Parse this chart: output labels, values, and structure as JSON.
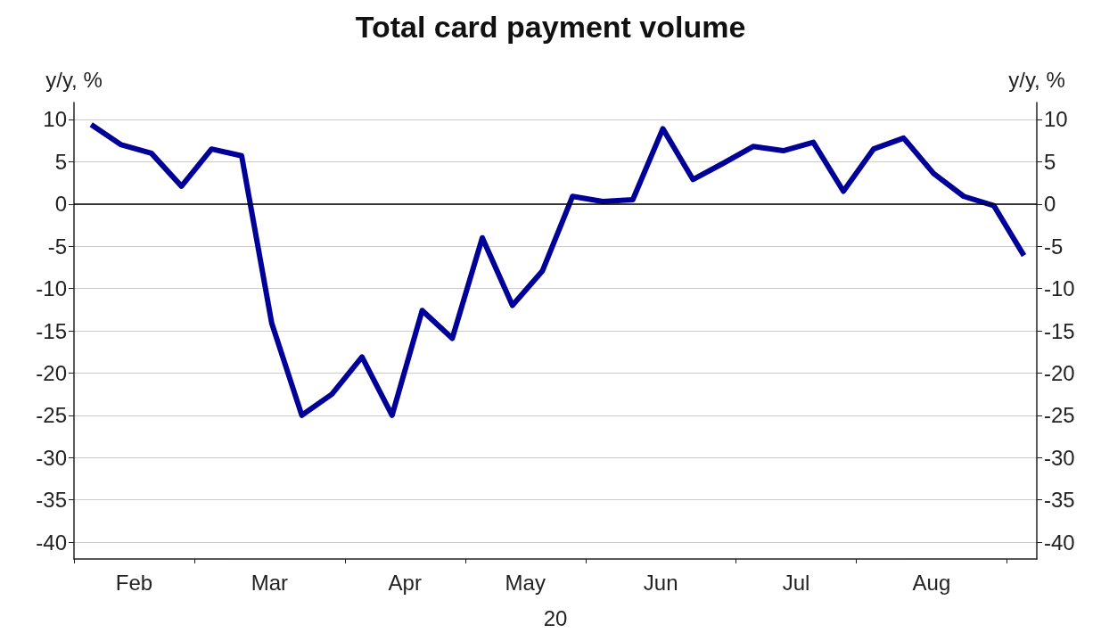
{
  "chart_data": {
    "type": "line",
    "title": "Total card payment volume",
    "xlabel": "20",
    "ylabel": "y/y, %",
    "y2label": "y/y, %",
    "x": [
      "--02-05",
      "--02-12",
      "--02-19",
      "--02-26",
      "--03-04",
      "--03-11",
      "--03-18",
      "--03-25",
      "--04-01",
      "--04-08",
      "--04-15",
      "--04-22",
      "--04-29",
      "--05-06",
      "--05-13",
      "--05-20",
      "--05-27",
      "--06-03",
      "--06-10",
      "--06-17",
      "--06-24",
      "--07-01",
      "--07-08",
      "--07-15",
      "--07-22",
      "--07-29",
      "--08-05",
      "--08-12",
      "--08-19",
      "--08-26",
      "--09-02",
      "--09-09"
    ],
    "series": [
      {
        "color": "#000099",
        "values": [
          9.4,
          7.0,
          6.0,
          2.1,
          6.5,
          5.7,
          -14.1,
          -25.0,
          -22.5,
          -18.1,
          -25.0,
          -12.6,
          -15.9,
          -4.0,
          -12.0,
          -7.9,
          0.9,
          0.3,
          0.5,
          8.9,
          2.9,
          4.8,
          6.8,
          6.3,
          7.3,
          1.5,
          6.5,
          7.8,
          3.6,
          0.9,
          -0.2,
          -6.1
        ]
      }
    ],
    "xlim": [
      "--02-01",
      "--09-12"
    ],
    "xticks": [
      {
        "value": "--02-01",
        "label": null
      },
      {
        "value": "--02-15",
        "label": "Feb"
      },
      {
        "value": "--02-29",
        "label": null
      },
      {
        "value": "--03-17T12:00",
        "label": "Mar"
      },
      {
        "value": "--04-04",
        "label": null
      },
      {
        "value": "--04-18",
        "label": "Apr"
      },
      {
        "value": "--05-02",
        "label": null
      },
      {
        "value": "--05-16",
        "label": "May"
      },
      {
        "value": "--05-30",
        "label": null
      },
      {
        "value": "--06-16T12:00",
        "label": "Jun"
      },
      {
        "value": "--07-04",
        "label": null
      },
      {
        "value": "--07-18",
        "label": "Jul"
      },
      {
        "value": "--08-01",
        "label": null
      },
      {
        "value": "--08-18T12:00",
        "label": "Aug"
      },
      {
        "value": "--09-05",
        "label": null
      }
    ],
    "ylim": [
      -42,
      12
    ],
    "yticks": [
      -40,
      -35,
      -30,
      -25,
      -20,
      -15,
      -10,
      -5,
      0,
      5,
      10
    ],
    "y2lim": [
      -42,
      12
    ],
    "y2ticks": [
      -40,
      -35,
      -30,
      -25,
      -20,
      -15,
      -10,
      -5,
      0,
      5,
      10
    ],
    "grid": "y",
    "marker": "none",
    "line_style": "solid",
    "ref_lines": [
      {
        "axis": "y",
        "value": 0,
        "color": "#000000"
      }
    ]
  }
}
